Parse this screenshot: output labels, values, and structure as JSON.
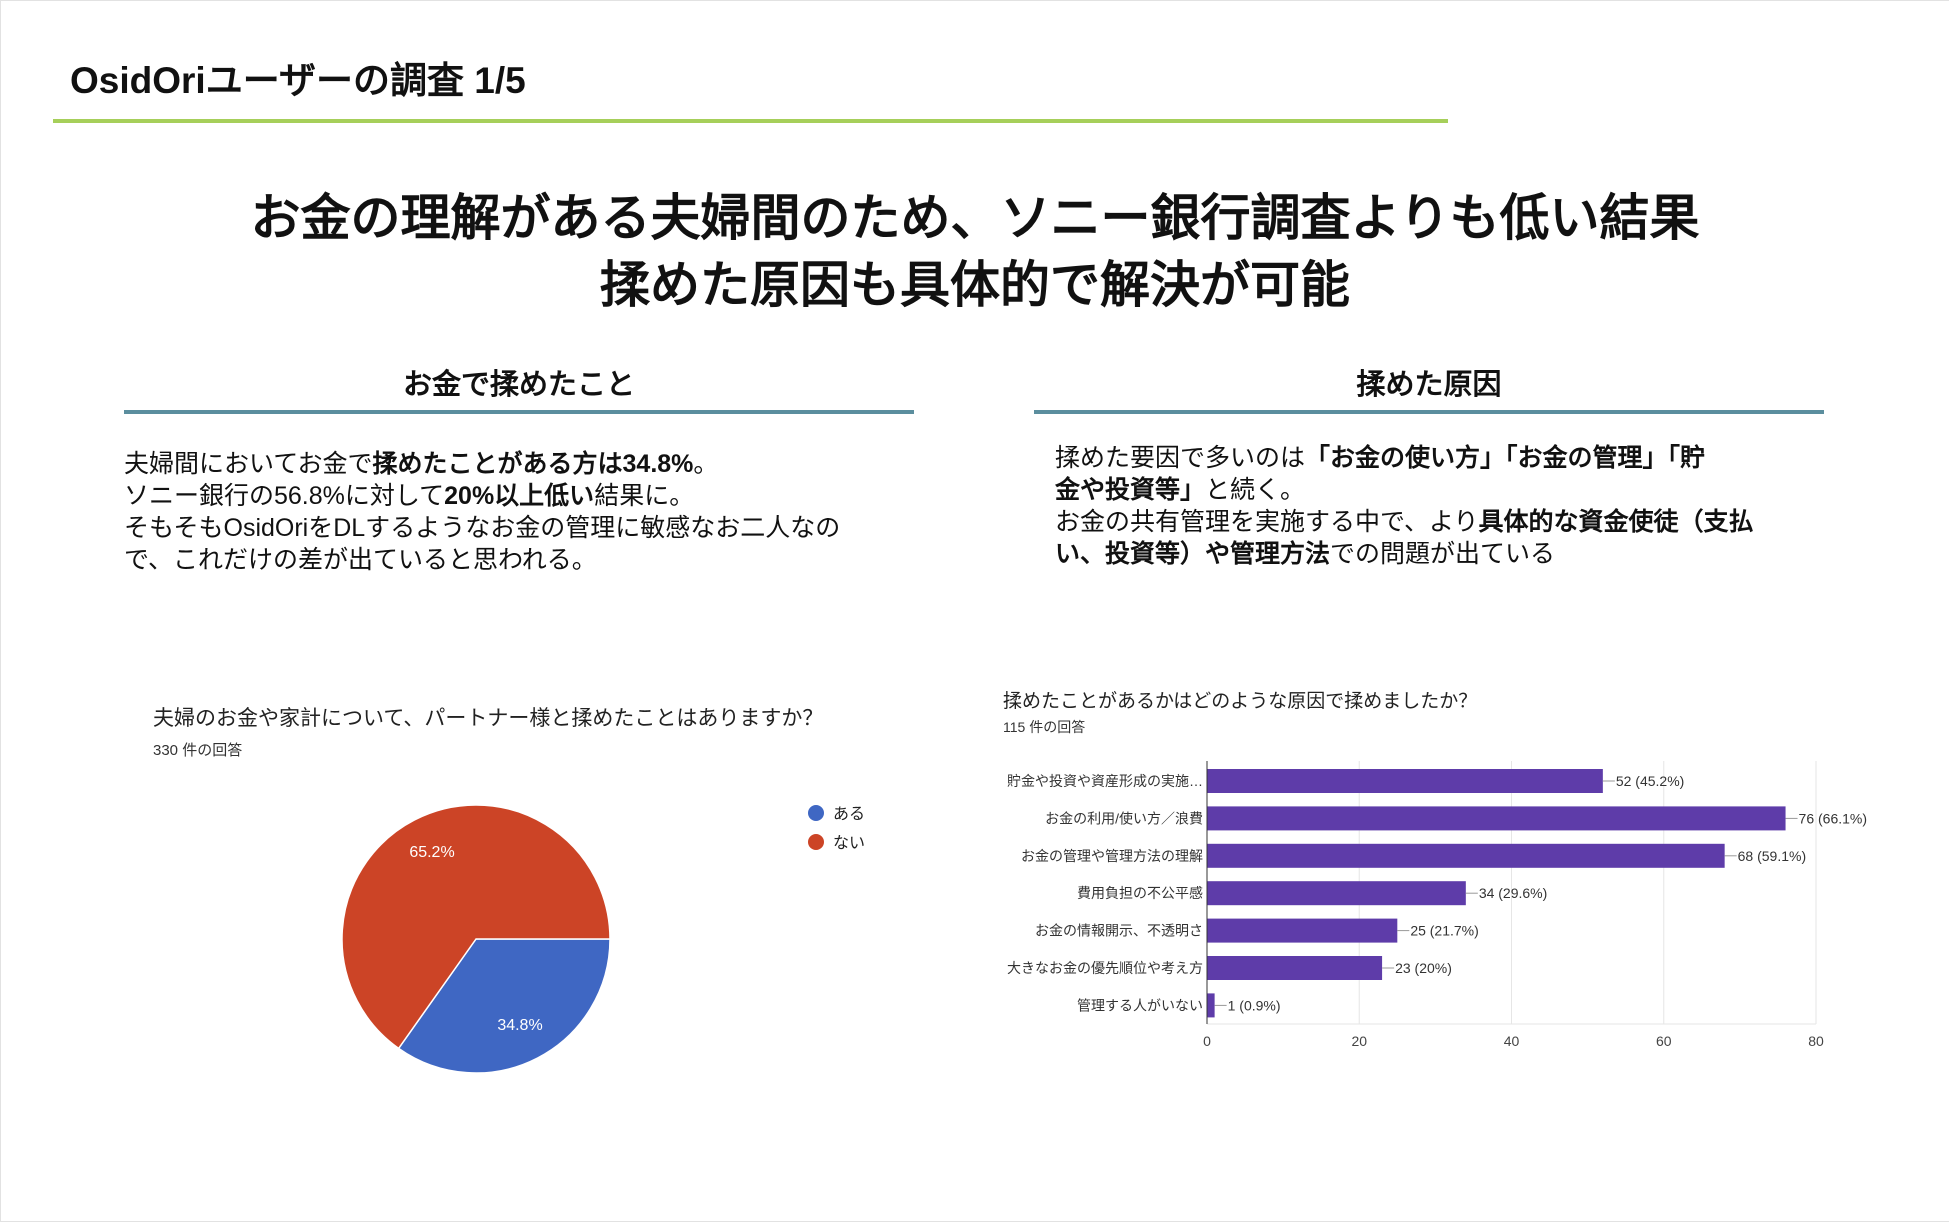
{
  "slide_title": "OsidOriユーザーの調査 1/5",
  "headline": [
    "お金の理解がある夫婦間のため、ソニー銀行調査よりも低い結果",
    "揉めた原因も具体的で解決が可能"
  ],
  "left_section": {
    "heading": "お金で揉めたこと",
    "lines": [
      [
        "夫婦間においてお金で",
        "揉めたことがある方は34.8%",
        "。"
      ],
      [
        "ソニー銀行の56.8%に対して",
        "20%以上低い",
        "結果に。"
      ],
      [
        "そもそもOsidOriをDLするようなお金の管理に敏感なお二人なの"
      ],
      [
        "で、これだけの差が出ていると思われる。"
      ]
    ]
  },
  "right_section": {
    "heading": "揉めた原因",
    "lines": [
      [
        "揉めた要因で多いのは",
        "「お金の使い方」「お金の管理」「貯",
        ""
      ],
      [
        "",
        "金や投資等」",
        "と続く。"
      ],
      [
        "お金の共有管理を実施する中で、より",
        "具体的な資金使徒（支払",
        ""
      ],
      [
        "",
        "い、投資等）や管理方法",
        "での問題が出ている"
      ]
    ]
  },
  "colors": {
    "green": "#a6cf5a",
    "teal": "#5b8e9e",
    "pie_yes": "#3f67c3",
    "pie_no": "#cc4426",
    "bar": "#5e3ca9"
  },
  "chart_data": [
    {
      "type": "pie",
      "title": "夫婦のお金や家計について、パートナー様と揉めたことはありますか？",
      "subtitle": "330 件の回答",
      "slices": [
        {
          "label": "ある",
          "value": 34.8,
          "display": "34.8%",
          "color": "#3f67c3"
        },
        {
          "label": "ない",
          "value": 65.2,
          "display": "65.2%",
          "color": "#cc4426"
        }
      ],
      "legend": "right"
    },
    {
      "type": "bar",
      "orientation": "horizontal",
      "title": "揉めたことがあるかはどのような原因で揉めましたか？",
      "subtitle": "115 件の回答",
      "categories": [
        "貯金や投資や資産形成の実施…",
        "お金の利用/使い方／浪費",
        "お金の管理や管理方法の理解",
        "費用負担の不公平感",
        "お金の情報開示、不透明さ",
        "大きなお金の優先順位や考え方",
        "管理する人がいない"
      ],
      "values": [
        52,
        76,
        68,
        34,
        25,
        23,
        1
      ],
      "labels": [
        "52 (45.2%)",
        "76 (66.1%)",
        "68 (59.1%)",
        "34 (29.6%)",
        "25 (21.7%)",
        "23 (20%)",
        "1 (0.9%)"
      ],
      "xlim": [
        0,
        80
      ],
      "xticks": [
        "0",
        "20",
        "40",
        "60",
        "80"
      ],
      "grid": true
    }
  ]
}
